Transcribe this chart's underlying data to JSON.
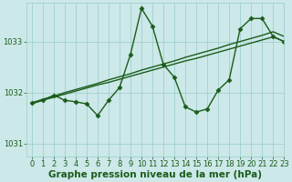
{
  "title": "Graphe pression niveau de la mer (hPa)",
  "bg_color": "#cce8e8",
  "grid_color": "#99cccc",
  "line_color": "#1a5c1a",
  "xlim": [
    -0.5,
    23
  ],
  "ylim": [
    1030.75,
    1033.75
  ],
  "yticks": [
    1031,
    1032,
    1033
  ],
  "xticks": [
    0,
    1,
    2,
    3,
    4,
    5,
    6,
    7,
    8,
    9,
    10,
    11,
    12,
    13,
    14,
    15,
    16,
    17,
    18,
    19,
    20,
    21,
    22,
    23
  ],
  "main_series": [
    1031.8,
    1031.85,
    1031.95,
    1031.85,
    1031.82,
    1031.78,
    1031.55,
    1031.85,
    1032.1,
    1032.75,
    1033.65,
    1033.3,
    1032.55,
    1032.3,
    1031.72,
    1031.62,
    1031.68,
    1032.05,
    1032.25,
    1033.25,
    1033.45,
    1033.45,
    1033.1,
    1033.0
  ],
  "trend1": [
    1031.8,
    1031.87,
    1031.93,
    1032.0,
    1032.06,
    1032.12,
    1032.18,
    1032.25,
    1032.31,
    1032.37,
    1032.44,
    1032.5,
    1032.56,
    1032.62,
    1032.69,
    1032.75,
    1032.81,
    1032.87,
    1032.94,
    1033.0,
    1033.06,
    1033.12,
    1033.19,
    1033.1
  ],
  "trend2": [
    1031.78,
    1031.85,
    1031.91,
    1031.97,
    1032.03,
    1032.09,
    1032.15,
    1032.2,
    1032.26,
    1032.32,
    1032.38,
    1032.44,
    1032.5,
    1032.56,
    1032.62,
    1032.67,
    1032.73,
    1032.79,
    1032.85,
    1032.91,
    1032.97,
    1033.03,
    1033.09,
    1033.0
  ],
  "marker": "D",
  "markersize": 2.5,
  "linewidth": 1.0,
  "tick_label_fontsize": 6,
  "xlabel_fontsize": 7.5
}
